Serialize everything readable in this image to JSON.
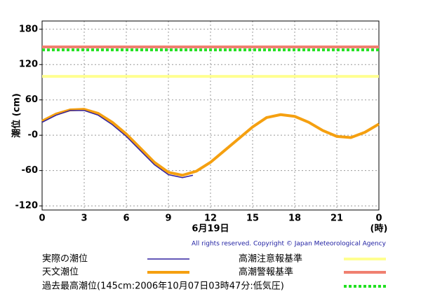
{
  "chart_data": {
    "type": "line",
    "y_label": "潮位 (cm)",
    "x_label": "6月19日",
    "x_unit": "(時)",
    "copyright": "All rights reserved. Copyright © Japan Meteorological Agency",
    "xlim": [
      0,
      24
    ],
    "xticks": [
      0,
      3,
      6,
      9,
      12,
      15,
      18,
      21,
      {
        "value": 24,
        "label": "0"
      }
    ],
    "ylim": [
      -127,
      194
    ],
    "yticks": [
      180,
      120,
      60,
      {
        "value": 0,
        "label": "-0"
      },
      -60,
      -120
    ],
    "grid": true,
    "series": [
      {
        "name": "実際の潮位",
        "color": "#3020a0",
        "x": [
          0,
          1,
          2,
          3,
          4,
          5,
          6,
          7,
          8,
          9,
          10,
          10.75
        ],
        "values": [
          22,
          34,
          42,
          42,
          34,
          18,
          -2,
          -26,
          -50,
          -67,
          -72,
          -68
        ]
      },
      {
        "name": "天文潮位",
        "color": "#f5a010",
        "x": [
          0,
          1,
          2,
          3,
          4,
          5,
          6,
          7,
          8,
          9,
          10,
          11,
          12,
          13,
          14,
          15,
          16,
          17,
          18,
          19,
          20,
          21,
          22,
          23,
          24
        ],
        "values": [
          24,
          36,
          43,
          44,
          37,
          22,
          2,
          -22,
          -46,
          -63,
          -68,
          -61,
          -46,
          -26,
          -6,
          14,
          30,
          35,
          32,
          22,
          8,
          -2,
          -4,
          5,
          19
        ]
      }
    ],
    "reference_lines": [
      {
        "name": "高潮注意報基準",
        "value": 100,
        "color": "#ffff90"
      },
      {
        "name": "高潮警報基準",
        "value": 150,
        "color": "#f08070"
      },
      {
        "name": "過去最高潮位(145cm:2006年10月07日03時47分:低気圧)",
        "value": 145,
        "color": "#20e020",
        "dashed": true
      }
    ]
  }
}
